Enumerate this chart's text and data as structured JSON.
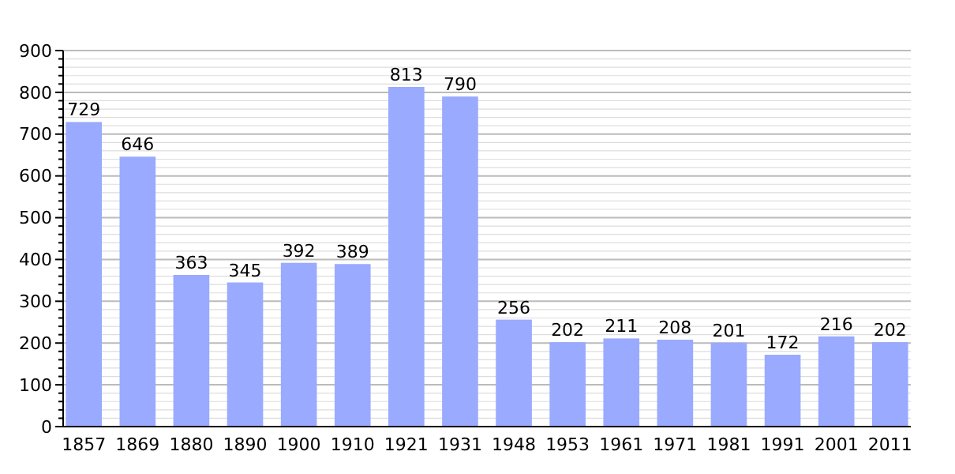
{
  "chart_data": {
    "type": "bar",
    "categories": [
      "1857",
      "1869",
      "1880",
      "1890",
      "1900",
      "1910",
      "1921",
      "1931",
      "1948",
      "1953",
      "1961",
      "1971",
      "1981",
      "1991",
      "2001",
      "2011"
    ],
    "values": [
      729,
      646,
      363,
      345,
      392,
      389,
      813,
      790,
      256,
      202,
      211,
      208,
      201,
      172,
      216,
      202
    ],
    "color": "#99aaff",
    "data_labels": true,
    "grid": true,
    "ylim": [
      0,
      900
    ],
    "yticks": [
      0,
      {
        "value": 20,
        "label": null
      },
      {
        "value": 40,
        "label": null
      },
      {
        "value": 60,
        "label": null
      },
      {
        "value": 80,
        "label": null
      },
      100,
      {
        "value": 120,
        "label": null
      },
      {
        "value": 140,
        "label": null
      },
      {
        "value": 160,
        "label": null
      },
      {
        "value": 180,
        "label": null
      },
      200,
      {
        "value": 220,
        "label": null
      },
      {
        "value": 240,
        "label": null
      },
      {
        "value": 260,
        "label": null
      },
      {
        "value": 280,
        "label": null
      },
      300,
      {
        "value": 320,
        "label": null
      },
      {
        "value": 340,
        "label": null
      },
      {
        "value": 360,
        "label": null
      },
      {
        "value": 380,
        "label": null
      },
      400,
      {
        "value": 420,
        "label": null
      },
      {
        "value": 440,
        "label": null
      },
      {
        "value": 460,
        "label": null
      },
      {
        "value": 480,
        "label": null
      },
      500,
      {
        "value": 520,
        "label": null
      },
      {
        "value": 540,
        "label": null
      },
      {
        "value": 560,
        "label": null
      },
      {
        "value": 580,
        "label": null
      },
      600,
      {
        "value": 620,
        "label": null
      },
      {
        "value": 640,
        "label": null
      },
      {
        "value": 660,
        "label": null
      },
      {
        "value": 680,
        "label": null
      },
      700,
      {
        "value": 720,
        "label": null
      },
      {
        "value": 740,
        "label": null
      },
      {
        "value": 760,
        "label": null
      },
      {
        "value": 780,
        "label": null
      },
      800,
      {
        "value": 820,
        "label": null
      },
      {
        "value": 840,
        "label": null
      },
      {
        "value": 860,
        "label": null
      },
      {
        "value": 880,
        "label": null
      },
      900
    ]
  }
}
